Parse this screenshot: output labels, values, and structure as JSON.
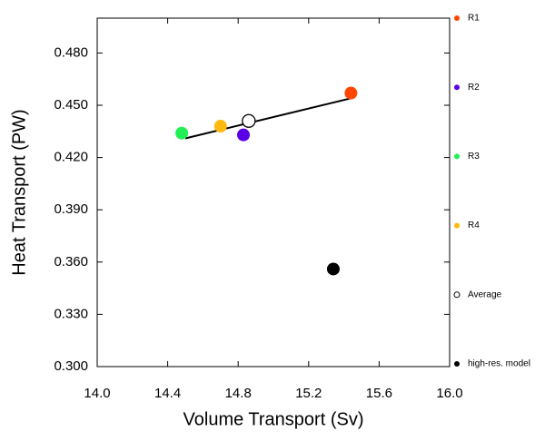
{
  "chart_data": {
    "type": "scatter",
    "x_label": "Volume Transport (Sv)",
    "y_label": "Heat Transport (PW)",
    "xlim": [
      14.0,
      16.0
    ],
    "ylim": [
      0.3,
      0.5
    ],
    "xticks": [
      {
        "value": 14.0,
        "label": "14.0"
      },
      14.4,
      14.8,
      15.2,
      15.6,
      {
        "value": 16.0,
        "label": "16.0"
      }
    ],
    "yticks": [
      {
        "value": 0.3,
        "label": "0.300"
      },
      {
        "value": 0.33,
        "label": "0.330"
      },
      {
        "value": 0.36,
        "label": "0.360"
      },
      {
        "value": 0.39,
        "label": "0.390"
      },
      {
        "value": 0.42,
        "label": "0.420"
      },
      {
        "value": 0.45,
        "label": "0.450"
      },
      {
        "value": 0.48,
        "label": "0.480"
      }
    ],
    "series": [
      {
        "name": "R1",
        "color": "#ff4500",
        "filled": true,
        "x": [
          15.44
        ],
        "values": [
          0.457
        ]
      },
      {
        "name": "R2",
        "color": "#5a00e6",
        "filled": true,
        "x": [
          14.83
        ],
        "values": [
          0.433
        ]
      },
      {
        "name": "R3",
        "color": "#22ee55",
        "filled": true,
        "x": [
          14.48
        ],
        "values": [
          0.434
        ]
      },
      {
        "name": "R4",
        "color": "#ffb90f",
        "filled": true,
        "x": [
          14.7
        ],
        "values": [
          0.438
        ]
      },
      {
        "name": "Average",
        "color": "#000000",
        "filled": false,
        "x": [
          14.86
        ],
        "values": [
          0.441
        ]
      },
      {
        "name": "high-res. model",
        "color": "#000000",
        "filled": true,
        "x": [
          15.34
        ],
        "values": [
          0.356
        ]
      }
    ],
    "fit_line": {
      "color": "#000000",
      "x": [
        14.5,
        15.44
      ],
      "values": [
        0.431,
        0.454
      ]
    }
  }
}
